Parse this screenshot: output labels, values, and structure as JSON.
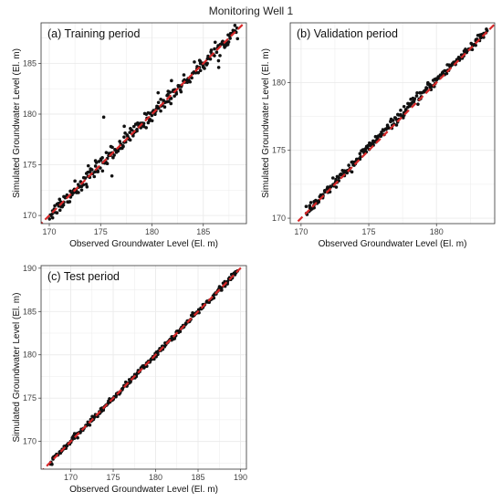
{
  "figure": {
    "title": "Monitoring Well 1"
  },
  "colors": {
    "points": "#111111",
    "reference_line": "#d62728",
    "grid": "#ebebeb",
    "panel_border": "#333333",
    "background": "#ffffff"
  },
  "chart_data": [
    {
      "type": "scatter",
      "title": "(a) Training period",
      "xlabel": "Observed Groundwater Level (El. m)",
      "ylabel": "Simulated Groundwater Level (El. m)",
      "xlim": [
        169.2,
        189.2
      ],
      "ylim": [
        169.2,
        189.0
      ],
      "xticks": [
        170,
        175,
        180,
        185
      ],
      "yticks": [
        170,
        175,
        180,
        185
      ],
      "grid": true,
      "reference_line": {
        "type": "1:1",
        "style": "dashed",
        "color": "#d62728"
      },
      "scatter_spread": 0.35,
      "outliers": [
        [
          175.3,
          179.7
        ],
        [
          181.9,
          183.3
        ],
        [
          176.1,
          173.9
        ],
        [
          177.3,
          178.8
        ],
        [
          174.5,
          175.4
        ],
        [
          173.8,
          174.9
        ],
        [
          176.0,
          176.8
        ],
        [
          180.6,
          182.1
        ],
        [
          186.5,
          184.6
        ],
        [
          184.7,
          185.2
        ],
        [
          172.5,
          173.4
        ],
        [
          171.0,
          171.6
        ]
      ]
    },
    {
      "type": "scatter",
      "title": "(b) Validation period",
      "xlabel": "Observed Groundwater Level (El. m)",
      "ylabel": "Simulated Groundwater Level (El. m)",
      "xlim": [
        169.2,
        184.3
      ],
      "ylim": [
        169.6,
        184.4
      ],
      "xticks": [
        170,
        175,
        180
      ],
      "yticks": [
        170,
        175,
        180
      ],
      "grid": true,
      "reference_line": {
        "type": "1:1",
        "style": "dashed",
        "color": "#d62728"
      },
      "scatter_spread": 0.18,
      "outliers": []
    },
    {
      "type": "scatter",
      "title": "(c) Test period",
      "xlabel": "Observed Groundwater Level (El. m)",
      "ylabel": "Simulated Groundwater Level (El. m)",
      "xlim": [
        166.5,
        190.7
      ],
      "ylim": [
        166.8,
        190.3
      ],
      "xticks": [
        170,
        175,
        180,
        185,
        190
      ],
      "yticks": [
        170,
        175,
        180,
        185,
        190
      ],
      "grid": true,
      "reference_line": {
        "type": "1:1",
        "style": "dashed",
        "color": "#d62728"
      },
      "scatter_spread": 0.15,
      "outliers": []
    }
  ]
}
